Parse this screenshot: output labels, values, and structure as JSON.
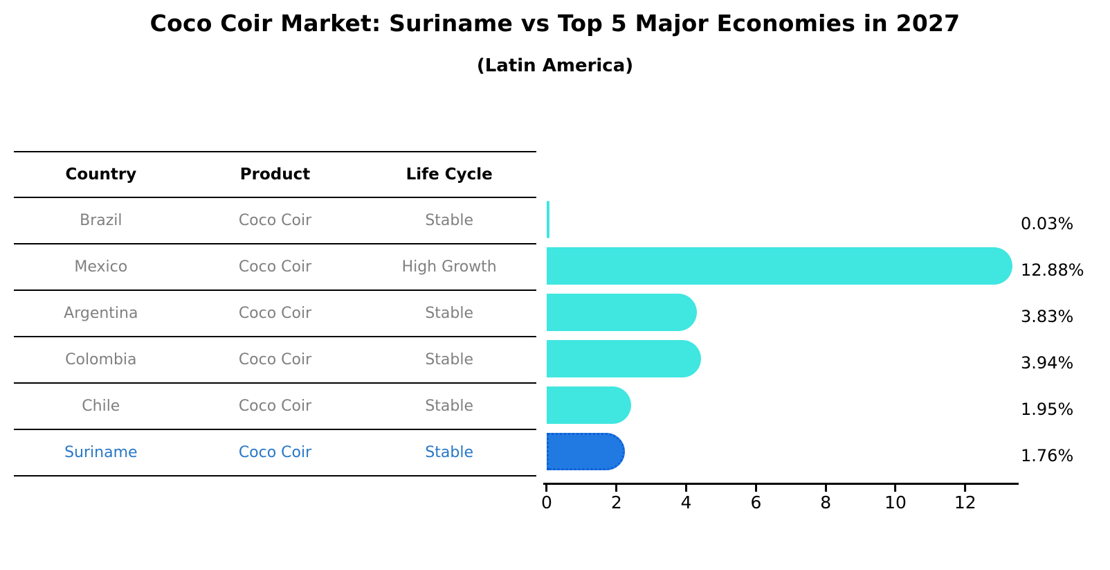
{
  "title": "Coco Coir Market: Suriname vs Top 5 Major Economies in 2027",
  "subtitle": "(Latin America)",
  "table": {
    "headers": [
      "Country",
      "Product",
      "Life Cycle"
    ],
    "rows": [
      {
        "country": "Brazil",
        "product": "Coco Coir",
        "life_cycle": "Stable",
        "highlight": false
      },
      {
        "country": "Mexico",
        "product": "Coco Coir",
        "life_cycle": "High Growth",
        "highlight": false
      },
      {
        "country": "Argentina",
        "product": "Coco Coir",
        "life_cycle": "Stable",
        "highlight": false
      },
      {
        "country": "Colombia",
        "product": "Coco Coir",
        "life_cycle": "Stable",
        "highlight": false
      },
      {
        "country": "Chile",
        "product": "Coco Coir",
        "life_cycle": "Stable",
        "highlight": false
      },
      {
        "country": "Suriname",
        "product": "Coco Coir",
        "life_cycle": "Stable",
        "highlight": true
      }
    ]
  },
  "chart_data": {
    "type": "bar",
    "orientation": "horizontal",
    "title": "Coco Coir Market: Suriname vs Top 5 Major Economies in 2027 (Latin America)",
    "categories": [
      "Brazil",
      "Mexico",
      "Argentina",
      "Colombia",
      "Chile",
      "Suriname"
    ],
    "values": [
      0.03,
      12.88,
      3.83,
      3.94,
      1.95,
      1.76
    ],
    "value_labels": [
      "0.03%",
      "12.88%",
      "3.83%",
      "3.94%",
      "1.95%",
      "1.76%"
    ],
    "x_ticks": [
      0,
      2,
      4,
      6,
      8,
      10,
      12
    ],
    "xlim": [
      0,
      13.5
    ],
    "grid": false,
    "legend": "none",
    "bar_color": "#40e6e0",
    "highlight_index": 5,
    "highlight_color": "#207ae2",
    "highlight_border_color": "#0f5fd7",
    "row_text_color": "#808080",
    "highlight_text_color": "#2878c8"
  }
}
